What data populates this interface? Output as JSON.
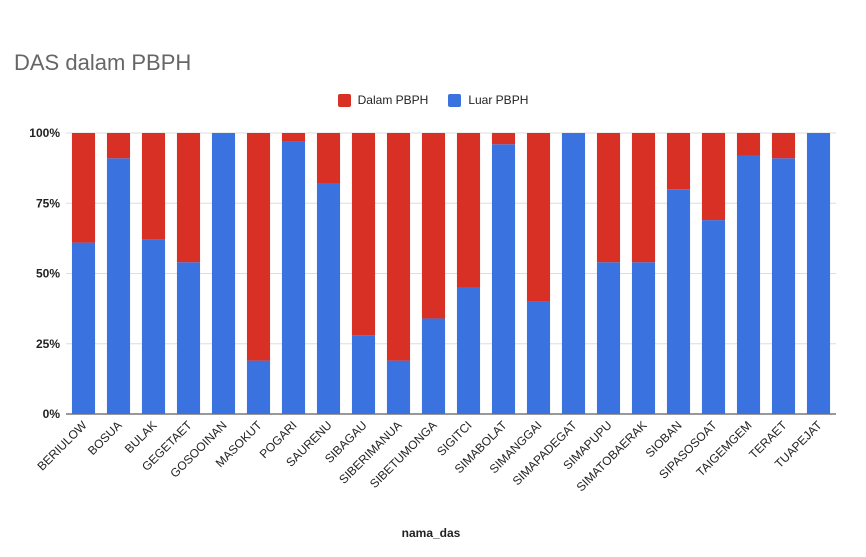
{
  "chart_data": {
    "type": "bar",
    "stacked": true,
    "normalized": true,
    "title": "DAS dalam PBPH",
    "xlabel": "nama_das",
    "ylabel": "",
    "ylim": [
      0,
      100
    ],
    "yticks": [
      "0%",
      "25%",
      "50%",
      "75%",
      "100%"
    ],
    "grid": true,
    "legend_position": "top",
    "categories": [
      "BERIULOW",
      "BOSUA",
      "BULAK",
      "GEGETAET",
      "GOSOOINAN",
      "MASOKUT",
      "POGARI",
      "SAURENU",
      "SIBAGAU",
      "SIBERIMANUA",
      "SIBETUMONGA",
      "SIGITCI",
      "SIMABOLAT",
      "SIMANGGAI",
      "SIMAPADEGAT",
      "SIMAPUPU",
      "SIMATOBAERAK",
      "SIOBAN",
      "SIPASOSOAT",
      "TAIGEMGEM",
      "TERAET",
      "TUAPEJAT"
    ],
    "series": [
      {
        "name": "Dalam PBPH",
        "color": "#d93025",
        "values": [
          39,
          9,
          38,
          46,
          0,
          81,
          3,
          18,
          72,
          81,
          66,
          55,
          4,
          60,
          0,
          46,
          46,
          20,
          31,
          8,
          9,
          0
        ]
      },
      {
        "name": "Luar PBPH",
        "color": "#3a72e0",
        "values": [
          61,
          91,
          62,
          54,
          100,
          19,
          97,
          82,
          28,
          19,
          34,
          45,
          96,
          40,
          100,
          54,
          54,
          80,
          69,
          92,
          91,
          100
        ]
      }
    ]
  }
}
